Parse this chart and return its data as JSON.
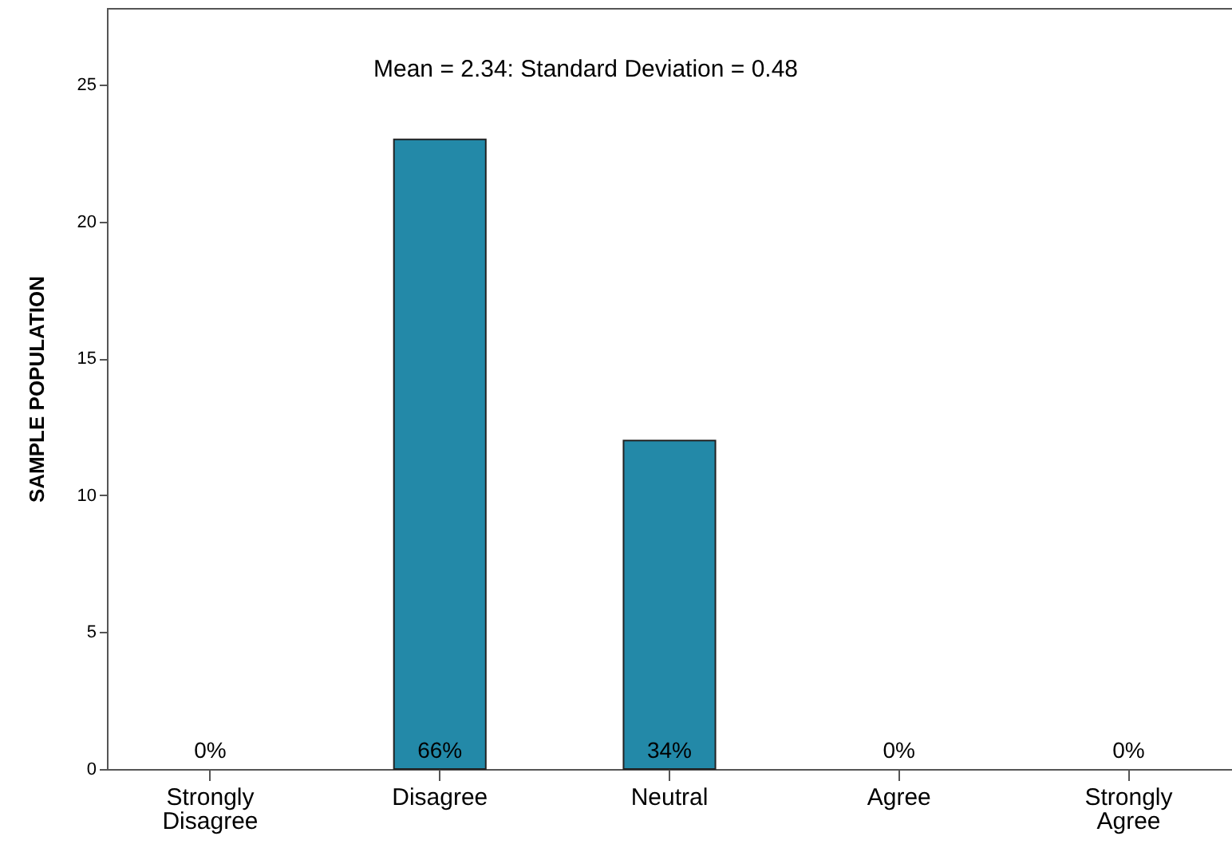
{
  "chart_data": {
    "type": "bar",
    "categories": [
      "Strongly Disagree",
      "Disagree",
      "Neutral",
      "Agree",
      "Strongly Agree"
    ],
    "values": [
      0,
      23,
      12,
      0,
      0
    ],
    "color": "#2389a8",
    "ylabel": "SAMPLE POPULATION",
    "ylim": [
      0,
      27.8
    ],
    "yticks": [
      0,
      5,
      10,
      15,
      20,
      25
    ],
    "annotations": [
      "Mean = 2.34: Standard Deviation = 0.48",
      {
        "text": "0%",
        "x": "Strongly Disagree",
        "y": 0
      },
      {
        "text": "66%",
        "x": "Disagree",
        "y": 0
      },
      {
        "text": "34%",
        "x": "Neutral",
        "y": 0
      },
      {
        "text": "0%",
        "x": "Agree",
        "y": 0
      },
      {
        "text": "0%",
        "x": "Strongly Agree",
        "y": 0
      }
    ],
    "grid": false
  }
}
